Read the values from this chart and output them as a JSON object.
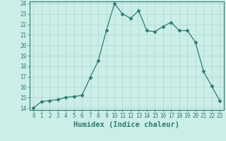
{
  "x": [
    0,
    1,
    2,
    3,
    4,
    5,
    6,
    7,
    8,
    9,
    10,
    11,
    12,
    13,
    14,
    15,
    16,
    17,
    18,
    19,
    20,
    21,
    22,
    23
  ],
  "y": [
    14.0,
    14.6,
    14.7,
    14.8,
    15.0,
    15.1,
    15.2,
    16.9,
    18.5,
    21.4,
    24.0,
    23.0,
    22.6,
    23.3,
    21.4,
    21.3,
    21.8,
    22.2,
    21.4,
    21.4,
    20.3,
    17.5,
    16.1,
    14.7
  ],
  "line_color": "#2d7d6f",
  "marker": "D",
  "marker_size": 2.5,
  "bg_color": "#cceee8",
  "grid_color": "#aad8d0",
  "xlabel": "Humidex (Indice chaleur)",
  "xlabel_fontsize": 7.5,
  "xlim": [
    -0.5,
    23.5
  ],
  "ylim": [
    13.8,
    24.2
  ],
  "yticks": [
    14,
    15,
    16,
    17,
    18,
    19,
    20,
    21,
    22,
    23,
    24
  ],
  "xticks": [
    0,
    1,
    2,
    3,
    4,
    5,
    6,
    7,
    8,
    9,
    10,
    11,
    12,
    13,
    14,
    15,
    16,
    17,
    18,
    19,
    20,
    21,
    22,
    23
  ],
  "tick_fontsize": 5.5,
  "spine_color": "#2d7d6f",
  "line_width": 0.9
}
